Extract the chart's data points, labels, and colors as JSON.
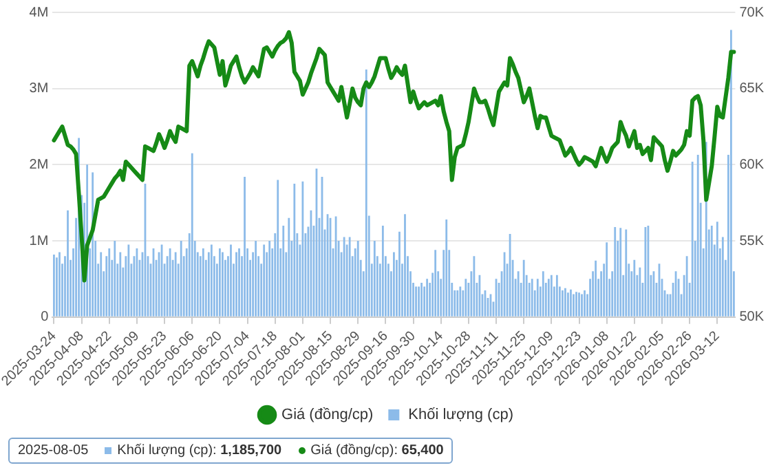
{
  "chart_data": {
    "type": "bar",
    "categories": [
      "2025-03-24",
      null,
      null,
      null,
      null,
      null,
      null,
      null,
      null,
      null,
      "2025-04-08",
      null,
      null,
      null,
      null,
      null,
      null,
      null,
      null,
      null,
      "2025-04-22",
      null,
      null,
      null,
      null,
      null,
      null,
      null,
      null,
      null,
      "2025-05-09",
      null,
      null,
      null,
      null,
      null,
      null,
      null,
      null,
      null,
      "2025-05-23",
      null,
      null,
      null,
      null,
      null,
      null,
      null,
      null,
      null,
      "2025-06-06",
      null,
      null,
      null,
      null,
      null,
      null,
      null,
      null,
      null,
      "2025-06-20",
      null,
      null,
      null,
      null,
      null,
      null,
      null,
      null,
      null,
      "2025-07-04",
      null,
      null,
      null,
      null,
      null,
      null,
      null,
      null,
      null,
      "2025-07-18",
      null,
      null,
      null,
      null,
      null,
      null,
      null,
      null,
      null,
      "2025-08-01",
      null,
      null,
      null,
      null,
      null,
      null,
      null,
      null,
      null,
      "2025-08-15",
      null,
      null,
      null,
      null,
      null,
      null,
      null,
      null,
      null,
      "2025-08-29",
      null,
      null,
      null,
      null,
      null,
      null,
      null,
      null,
      null,
      "2025-09-16",
      null,
      null,
      null,
      null,
      null,
      null,
      null,
      null,
      null,
      "2025-09-30",
      null,
      null,
      null,
      null,
      null,
      null,
      null,
      null,
      null,
      "2025-10-14",
      null,
      null,
      null,
      null,
      null,
      null,
      null,
      null,
      null,
      "2025-10-28",
      null,
      null,
      null,
      null,
      null,
      null,
      null,
      null,
      null,
      "2025-11-11",
      null,
      null,
      null,
      null,
      null,
      null,
      null,
      null,
      null,
      "2025-11-25",
      null,
      null,
      null,
      null,
      null,
      null,
      null,
      null,
      null,
      "2025-12-09",
      null,
      null,
      null,
      null,
      null,
      null,
      null,
      null,
      null,
      "2025-12-23",
      null,
      null,
      null,
      null,
      null,
      null,
      null,
      null,
      null,
      "2026-01-08",
      null,
      null,
      null,
      null,
      null,
      null,
      null,
      null,
      null,
      "2026-01-22",
      null,
      null,
      null,
      null,
      null,
      null,
      null,
      null,
      null,
      "2026-02-05",
      null,
      null,
      null,
      null,
      null,
      null,
      null,
      null,
      null,
      "2026-02-26",
      null,
      null,
      null,
      null,
      null,
      null,
      null,
      null,
      null,
      "2026-03-12",
      null,
      null,
      null,
      null,
      null,
      null
    ],
    "series": [
      {
        "name": "Khối lượng (cp)",
        "color": "#8cbbe9",
        "values": [
          820000,
          780000,
          850000,
          700000,
          800000,
          1400000,
          750000,
          900000,
          1300000,
          2350000,
          1600000,
          1500000,
          2000000,
          900000,
          1900000,
          1000000,
          700000,
          850000,
          600000,
          800000,
          900000,
          750000,
          1000000,
          700000,
          850000,
          650000,
          800000,
          950000,
          700000,
          800000,
          900000,
          750000,
          850000,
          1750000,
          800000,
          700000,
          900000,
          750000,
          850000,
          950000,
          700000,
          800000,
          900000,
          750000,
          850000,
          700000,
          1000000,
          800000,
          900000,
          1100000,
          2150000,
          1000000,
          850000,
          800000,
          900000,
          750000,
          850000,
          950000,
          800000,
          700000,
          900000,
          850000,
          750000,
          800000,
          950000,
          700000,
          850000,
          900000,
          800000,
          1840000,
          900000,
          750000,
          850000,
          1000000,
          800000,
          700000,
          950000,
          850000,
          1000000,
          900000,
          1100000,
          1800000,
          900000,
          1200000,
          850000,
          1300000,
          1000000,
          1750000,
          1100000,
          950000,
          1780000,
          1100000,
          1185700,
          1400000,
          1200000,
          1950000,
          1300000,
          1840000,
          1150000,
          1350000,
          1300000,
          900000,
          1320000,
          1000000,
          850000,
          1050000,
          950000,
          1050000,
          800000,
          900000,
          1000000,
          750000,
          600000,
          3250000,
          1330000,
          700000,
          1000000,
          800000,
          700000,
          1200000,
          800000,
          700000,
          600000,
          850000,
          750000,
          1120000,
          700000,
          1350000,
          800000,
          600000,
          450000,
          400000,
          400000,
          450000,
          400000,
          500000,
          450000,
          580000,
          880000,
          600000,
          500000,
          880000,
          1280000,
          880000,
          450000,
          350000,
          350000,
          400000,
          350000,
          500000,
          450000,
          600000,
          800000,
          450000,
          550000,
          300000,
          350000,
          250000,
          300000,
          200000,
          500000,
          450000,
          600000,
          850000,
          700000,
          1090000,
          750000,
          500000,
          600000,
          450000,
          750000,
          550000,
          450000,
          500000,
          350000,
          500000,
          400000,
          600000,
          450000,
          500000,
          550000,
          400000,
          550000,
          400000,
          350000,
          380000,
          320000,
          360000,
          300000,
          330000,
          320000,
          300000,
          350000,
          300000,
          500000,
          600000,
          740000,
          500000,
          600000,
          700000,
          980000,
          500000,
          600000,
          1180000,
          1000000,
          1170000,
          550000,
          1150000,
          700000,
          600000,
          750000,
          550000,
          650000,
          450000,
          1180000,
          1200000,
          550000,
          600000,
          450000,
          700000,
          500000,
          350000,
          300000,
          300000,
          450000,
          600000,
          500000,
          300000,
          550000,
          800000,
          450000,
          2040000,
          1000000,
          2130000,
          1500000,
          900000,
          2300000,
          1150000,
          1200000,
          950000,
          1250000,
          900000,
          1050000,
          750000,
          2130000,
          3770000,
          600000
        ]
      },
      {
        "name": "Giá (đồng/cp)",
        "type": "line",
        "axis": "y2",
        "color": "#168a16",
        "values": [
          61600,
          61900,
          62200,
          62500,
          61900,
          61300,
          61200,
          61000,
          60700,
          58100,
          55300,
          52400,
          54700,
          55200,
          55700,
          56700,
          57700,
          57800,
          57900,
          58200,
          58500,
          58800,
          59100,
          59300,
          59600,
          59000,
          60200,
          60000,
          59800,
          59600,
          59400,
          59200,
          59000,
          61200,
          61100,
          61000,
          60900,
          61400,
          62000,
          61600,
          61100,
          61600,
          62200,
          61800,
          61500,
          62500,
          62400,
          62300,
          62200,
          66500,
          66800,
          66300,
          65800,
          66500,
          67000,
          67600,
          68100,
          67900,
          67700,
          66800,
          65900,
          66800,
          65200,
          65800,
          66500,
          66800,
          67100,
          66400,
          65800,
          65400,
          65700,
          66000,
          66400,
          66100,
          65800,
          66700,
          67600,
          67700,
          67400,
          67100,
          67500,
          67800,
          68000,
          68100,
          68300,
          68700,
          68000,
          66100,
          65800,
          65500,
          64600,
          65000,
          65400,
          66000,
          66500,
          67000,
          67600,
          67400,
          67200,
          65400,
          65100,
          64800,
          64500,
          64200,
          65100,
          64100,
          63100,
          64000,
          65000,
          64400,
          64100,
          63900,
          65000,
          65400,
          65100,
          65400,
          65800,
          66400,
          67000,
          67000,
          67000,
          66300,
          65700,
          66000,
          66400,
          66100,
          65900,
          66500,
          65300,
          64100,
          64800,
          64200,
          63700,
          63900,
          64100,
          63900,
          64000,
          64100,
          64200,
          63900,
          64500,
          63500,
          62800,
          62200,
          59000,
          60500,
          61100,
          61200,
          61300,
          62000,
          62800,
          63900,
          65000,
          64500,
          64100,
          64100,
          64200,
          63700,
          63100,
          62600,
          63700,
          64800,
          65100,
          65400,
          65200,
          67000,
          66600,
          66100,
          65700,
          64900,
          64100,
          64500,
          65000,
          64100,
          63200,
          62400,
          63200,
          63100,
          63100,
          62500,
          61900,
          61800,
          61700,
          61600,
          61100,
          60600,
          60800,
          61100,
          60700,
          60300,
          60000,
          60200,
          60500,
          60400,
          60300,
          60200,
          59900,
          60500,
          61100,
          60600,
          60200,
          60600,
          61100,
          61300,
          61500,
          62800,
          62300,
          61900,
          61200,
          61700,
          62200,
          61100,
          61300,
          60700,
          60900,
          61100,
          60300,
          61800,
          61600,
          61400,
          61200,
          60300,
          59600,
          60200,
          60900,
          60600,
          60800,
          61000,
          61300,
          62200,
          61900,
          64200,
          64400,
          64500,
          63900,
          61600,
          57700,
          58800,
          59900,
          61800,
          63800,
          63200,
          63100,
          64400,
          65700,
          67400,
          67400
        ]
      }
    ],
    "ylim": [
      0,
      4000000
    ],
    "yticks": [
      {
        "value": 0,
        "label": "0"
      },
      {
        "value": 1000000,
        "label": "1M"
      },
      {
        "value": 2000000,
        "label": "2M"
      },
      {
        "value": 3000000,
        "label": "3M"
      },
      {
        "value": 4000000,
        "label": "4M"
      }
    ],
    "y2lim": [
      50000,
      70000
    ],
    "y2ticks": [
      {
        "value": 50000,
        "label": "50K"
      },
      {
        "value": 55000,
        "label": "55K"
      },
      {
        "value": 60000,
        "label": "60K"
      },
      {
        "value": 65000,
        "label": "65K"
      },
      {
        "value": 70000,
        "label": "70K"
      }
    ],
    "grid": "y",
    "legend": "bottom",
    "marker": "none",
    "line_style": "solid",
    "annotations": [
      "2025-08-05",
      "Khối lượng (cp): 1,185,700",
      "Giá (đồng/cp): 65,400"
    ]
  }
}
